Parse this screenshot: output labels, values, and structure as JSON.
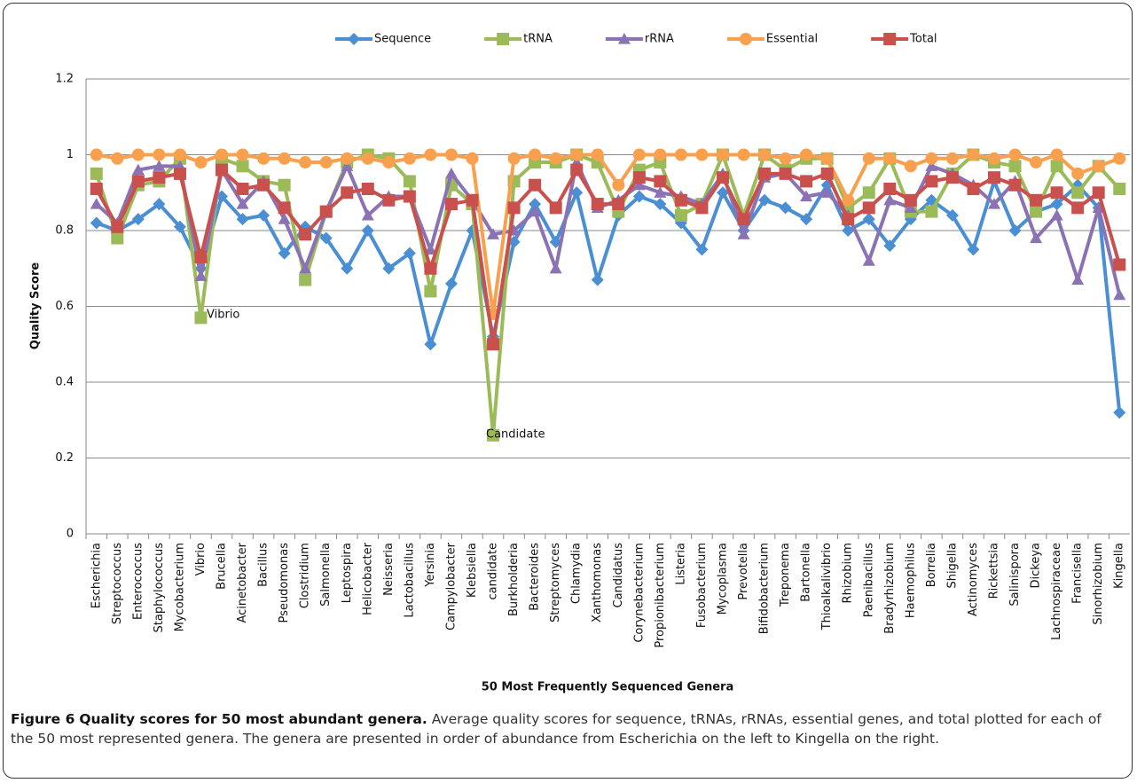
{
  "chart_data": {
    "type": "line",
    "title": null,
    "x_label": "50 Most Frequently Sequenced Genera",
    "y_label": "Quality Score",
    "categories": [
      "Escherichia",
      "Streptococcus",
      "Enterococcus",
      "Staphylococcus",
      "Mycobacterium",
      "Vibrio",
      "Brucella",
      "Acinetobacter",
      "Bacillus",
      "Pseudomonas",
      "Clostridium",
      "Salmonella",
      "Leptospira",
      "Helicobacter",
      "Neisseria",
      "Lactobacillus",
      "Yersinia",
      "Campylobacter",
      "Klebsiella",
      "candidate",
      "Burkholderia",
      "Bacteroides",
      "Streptomyces",
      "Chlamydia",
      "Xanthomonas",
      "Candidatus",
      "Corynebacterium",
      "Propionibacterium",
      "Listeria",
      "Fusobacterium",
      "Mycoplasma",
      "Prevotella",
      "Bifidobacterium",
      "Treponema",
      "Bartonella",
      "Thioalkalivibrio",
      "Rhizobium",
      "Paenibacillus",
      "Bradyrhizobium",
      "Haemophilus",
      "Borrelia",
      "Shigella",
      "Actinomyces",
      "Rickettsia",
      "Salinispora",
      "Dickeya",
      "Lachnospiraceae",
      "Francisella",
      "Sinorhizobium",
      "Kingella"
    ],
    "series": [
      {
        "name": "Sequence",
        "color": "#4a8fd3",
        "marker": "diamond",
        "values": [
          0.82,
          0.8,
          0.83,
          0.87,
          0.81,
          0.7,
          0.89,
          0.83,
          0.84,
          0.74,
          0.81,
          0.78,
          0.7,
          0.8,
          0.7,
          0.74,
          0.5,
          0.66,
          0.8,
          0.52,
          0.77,
          0.87,
          0.77,
          0.9,
          0.67,
          0.84,
          0.89,
          0.87,
          0.82,
          0.75,
          0.9,
          0.8,
          0.88,
          0.86,
          0.83,
          0.92,
          0.8,
          0.83,
          0.76,
          0.83,
          0.88,
          0.84,
          0.75,
          0.93,
          0.8,
          0.85,
          0.87,
          0.92,
          0.86,
          0.32
        ]
      },
      {
        "name": "tRNA",
        "color": "#9bbb59",
        "marker": "square",
        "values": [
          0.95,
          0.78,
          0.92,
          0.93,
          0.99,
          0.57,
          0.99,
          0.97,
          0.93,
          0.92,
          0.67,
          0.85,
          0.98,
          1.0,
          0.99,
          0.93,
          0.64,
          0.92,
          0.87,
          0.26,
          0.93,
          0.98,
          0.98,
          1.0,
          0.98,
          0.85,
          0.96,
          0.98,
          0.84,
          0.87,
          1.0,
          0.84,
          1.0,
          0.96,
          0.99,
          0.99,
          0.86,
          0.9,
          0.99,
          0.85,
          0.85,
          0.95,
          1.0,
          0.98,
          0.97,
          0.85,
          0.97,
          0.9,
          0.97,
          0.91
        ]
      },
      {
        "name": "rRNA",
        "color": "#8a72b4",
        "marker": "triangle",
        "values": [
          0.87,
          0.82,
          0.96,
          0.97,
          0.97,
          0.68,
          0.96,
          0.87,
          0.93,
          0.83,
          0.7,
          0.85,
          0.97,
          0.84,
          0.89,
          0.89,
          0.75,
          0.95,
          0.88,
          0.79,
          0.8,
          0.85,
          0.7,
          0.98,
          0.86,
          0.88,
          0.92,
          0.9,
          0.89,
          0.87,
          0.95,
          0.79,
          0.94,
          0.95,
          0.89,
          0.9,
          0.84,
          0.72,
          0.88,
          0.86,
          0.97,
          0.95,
          0.92,
          0.87,
          0.93,
          0.78,
          0.84,
          0.67,
          0.86,
          0.63
        ]
      },
      {
        "name": "Essential",
        "color": "#f9a04e",
        "marker": "circle",
        "values": [
          1.0,
          0.99,
          1.0,
          1.0,
          1.0,
          0.98,
          1.0,
          1.0,
          0.99,
          0.99,
          0.98,
          0.98,
          0.99,
          0.99,
          0.98,
          0.99,
          1.0,
          1.0,
          0.99,
          0.58,
          0.99,
          1.0,
          0.99,
          1.0,
          1.0,
          0.92,
          1.0,
          1.0,
          1.0,
          1.0,
          1.0,
          1.0,
          1.0,
          0.99,
          1.0,
          0.99,
          0.88,
          0.99,
          0.99,
          0.97,
          0.99,
          0.99,
          1.0,
          0.99,
          1.0,
          0.98,
          1.0,
          0.95,
          0.97,
          0.99
        ]
      },
      {
        "name": "Total",
        "color": "#c9504d",
        "marker": "square",
        "values": [
          0.91,
          0.81,
          0.93,
          0.94,
          0.95,
          0.73,
          0.96,
          0.91,
          0.92,
          0.86,
          0.79,
          0.85,
          0.9,
          0.91,
          0.88,
          0.89,
          0.7,
          0.87,
          0.88,
          0.5,
          0.86,
          0.92,
          0.86,
          0.96,
          0.87,
          0.87,
          0.94,
          0.93,
          0.88,
          0.86,
          0.94,
          0.83,
          0.95,
          0.95,
          0.93,
          0.95,
          0.83,
          0.86,
          0.91,
          0.88,
          0.93,
          0.94,
          0.91,
          0.94,
          0.92,
          0.88,
          0.9,
          0.86,
          0.9,
          0.71
        ]
      }
    ],
    "ylim": [
      0,
      1.2
    ],
    "yticks": [
      0,
      0.2,
      0.4,
      0.6,
      0.8,
      1,
      1.2
    ],
    "grid": true,
    "legend": "top",
    "annotations": [
      "Vibrio",
      "Candidate"
    ]
  },
  "caption": {
    "label": "Figure 6",
    "title": "Quality scores for 50 most abundant genera.",
    "text": "Average quality scores for sequence, tRNAs, rRNAs, essential genes, and total plotted for each of the 50 most represented genera. The genera are presented in order of abundance from Escherichia on the left to Kingella on the right."
  }
}
